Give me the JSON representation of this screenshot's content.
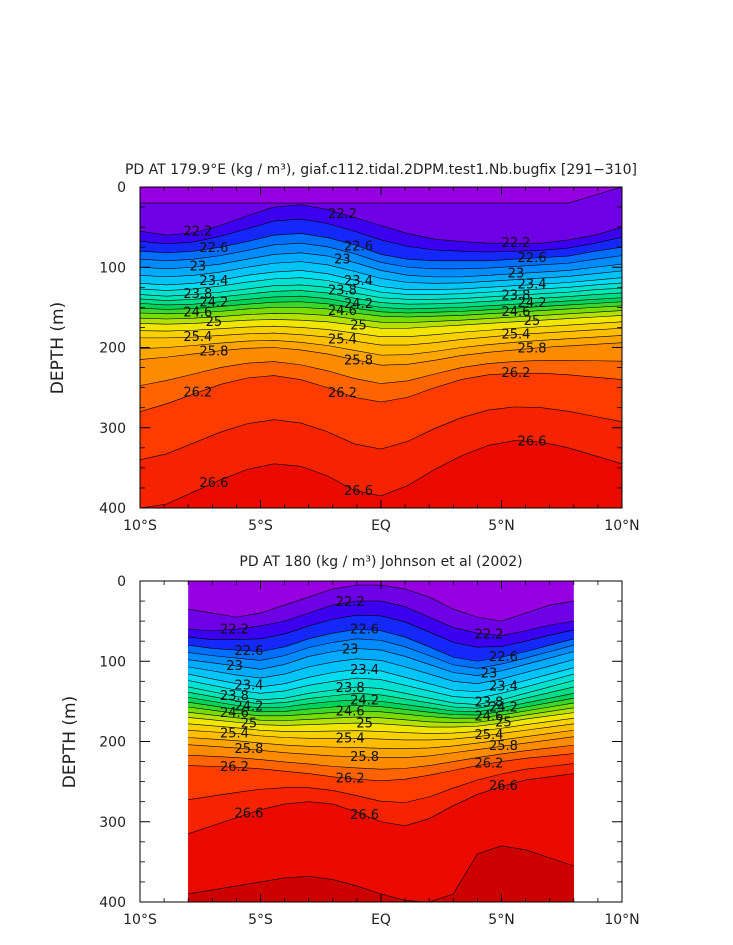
{
  "chart_data": [
    {
      "type": "contour",
      "title": "PD AT 179.9°E (kg / m³), giaf.c112.tidal.2DPM.test1.Nb.bugfix [291−310]",
      "xlabel": "",
      "ylabel": "DEPTH (m)",
      "xlim": [
        -10,
        10
      ],
      "ylim": [
        400,
        0
      ],
      "x_ticks": [
        -10,
        -5,
        0,
        5,
        10
      ],
      "x_tick_labels": [
        "10°S",
        "5°S",
        "EQ",
        "5°N",
        "10°N"
      ],
      "y_ticks": [
        0,
        100,
        200,
        300,
        400
      ],
      "y_tick_labels": [
        "0",
        "100",
        "200",
        "300",
        "400"
      ],
      "data_x_range": [
        -10,
        10
      ],
      "contour_levels": [
        22.0,
        22.2,
        22.4,
        22.6,
        22.8,
        23.0,
        23.2,
        23.4,
        23.6,
        23.8,
        24.0,
        24.2,
        24.4,
        24.6,
        24.8,
        25.0,
        25.2,
        25.4,
        25.6,
        25.8,
        26.0,
        26.2,
        26.4,
        26.6,
        26.8
      ],
      "contour_depth_profile": [
        {
          "level": 22.0,
          "depths": [
            20,
            20,
            20,
            20,
            20,
            20,
            20,
            20,
            20,
            20,
            20,
            20,
            20,
            20,
            20,
            20,
            20,
            10,
            0
          ]
        },
        {
          "level": 22.2,
          "depths": [
            55,
            60,
            57,
            48,
            36,
            25,
            22,
            28,
            38,
            48,
            58,
            65,
            68,
            70,
            70,
            70,
            66,
            60,
            50
          ]
        },
        {
          "level": 22.6,
          "depths": [
            80,
            82,
            80,
            75,
            68,
            60,
            58,
            63,
            72,
            84,
            90,
            92,
            92,
            92,
            90,
            88,
            86,
            80,
            75
          ]
        },
        {
          "level": 23.0,
          "depths": [
            100,
            102,
            100,
            96,
            90,
            84,
            82,
            86,
            94,
            104,
            110,
            112,
            112,
            110,
            108,
            106,
            104,
            100,
            96
          ]
        },
        {
          "level": 23.4,
          "depths": [
            120,
            122,
            120,
            116,
            110,
            106,
            104,
            108,
            116,
            124,
            128,
            128,
            127,
            125,
            123,
            121,
            119,
            116,
            113
          ]
        },
        {
          "level": 23.8,
          "depths": [
            134,
            136,
            134,
            131,
            127,
            123,
            122,
            125,
            132,
            138,
            140,
            140,
            139,
            137,
            135,
            133,
            131,
            128,
            126
          ]
        },
        {
          "level": 24.2,
          "depths": [
            145,
            147,
            146,
            143,
            140,
            137,
            136,
            139,
            145,
            150,
            152,
            151,
            150,
            148,
            146,
            144,
            142,
            140,
            138
          ]
        },
        {
          "level": 24.6,
          "depths": [
            157,
            158,
            157,
            155,
            152,
            150,
            150,
            152,
            157,
            161,
            162,
            161,
            160,
            158,
            156,
            154,
            152,
            150,
            148
          ]
        },
        {
          "level": 25.0,
          "depths": [
            170,
            171,
            170,
            168,
            166,
            165,
            166,
            168,
            172,
            176,
            176,
            174,
            172,
            170,
            168,
            166,
            164,
            162,
            160
          ]
        },
        {
          "level": 25.4,
          "depths": [
            188,
            188,
            187,
            185,
            183,
            182,
            184,
            187,
            192,
            197,
            197,
            194,
            190,
            187,
            184,
            182,
            180,
            178,
            176
          ]
        },
        {
          "level": 25.8,
          "depths": [
            215,
            212,
            208,
            204,
            201,
            200,
            203,
            208,
            215,
            222,
            221,
            216,
            210,
            206,
            203,
            200,
            198,
            196,
            194
          ]
        },
        {
          "level": 26.2,
          "depths": [
            280,
            270,
            258,
            246,
            238,
            235,
            240,
            250,
            262,
            268,
            262,
            250,
            240,
            234,
            232,
            232,
            234,
            237,
            240
          ]
        },
        {
          "level": 26.6,
          "depths": [
            400,
            395,
            380,
            365,
            352,
            345,
            348,
            360,
            378,
            385,
            372,
            352,
            335,
            322,
            316,
            318,
            325,
            335,
            345
          ]
        }
      ],
      "labeled_contours": [
        "22.2",
        "22.6",
        "23",
        "23.4",
        "23.8",
        "24.2",
        "24.6",
        "25",
        "25.4",
        "25.8",
        "26.2",
        "26.6"
      ]
    },
    {
      "type": "contour",
      "title": "PD AT 180 (kg / m³) Johnson et al (2002)",
      "xlabel": "",
      "ylabel": "DEPTH (m)",
      "xlim": [
        -10,
        10
      ],
      "ylim": [
        400,
        0
      ],
      "x_ticks": [
        -10,
        -5,
        0,
        5,
        10
      ],
      "x_tick_labels": [
        "10°S",
        "5°S",
        "EQ",
        "5°N",
        "10°N"
      ],
      "y_ticks": [
        0,
        100,
        200,
        300,
        400
      ],
      "y_tick_labels": [
        "0",
        "100",
        "200",
        "300",
        "400"
      ],
      "data_x_range": [
        -8,
        8
      ],
      "contour_levels": [
        21.6,
        21.8,
        22.0,
        22.2,
        22.4,
        22.6,
        22.8,
        23.0,
        23.2,
        23.4,
        23.6,
        23.8,
        24.0,
        24.2,
        24.4,
        24.6,
        24.8,
        25.0,
        25.2,
        25.4,
        25.6,
        25.8,
        26.0,
        26.2,
        26.4,
        26.6,
        26.8
      ],
      "contour_depth_profile": [
        {
          "level": 22.0,
          "depths": [
            35,
            40,
            45,
            40,
            30,
            20,
            10,
            5,
            5,
            10,
            20,
            35,
            45,
            50,
            40,
            30,
            25
          ]
        },
        {
          "level": 22.2,
          "depths": [
            60,
            62,
            60,
            56,
            50,
            40,
            30,
            25,
            25,
            32,
            45,
            58,
            65,
            68,
            62,
            55,
            50
          ]
        },
        {
          "level": 22.6,
          "depths": [
            80,
            84,
            86,
            88,
            82,
            72,
            65,
            60,
            62,
            70,
            82,
            95,
            100,
            95,
            88,
            80,
            72
          ]
        },
        {
          "level": 23.0,
          "depths": [
            98,
            102,
            106,
            110,
            104,
            94,
            88,
            84,
            86,
            94,
            104,
            114,
            118,
            112,
            104,
            96,
            88
          ]
        },
        {
          "level": 23.4,
          "depths": [
            116,
            122,
            128,
            132,
            128,
            120,
            114,
            110,
            112,
            120,
            128,
            136,
            138,
            132,
            124,
            116,
            108
          ]
        },
        {
          "level": 23.8,
          "depths": [
            132,
            138,
            144,
            148,
            146,
            140,
            136,
            132,
            134,
            140,
            146,
            152,
            154,
            148,
            140,
            132,
            124
          ]
        },
        {
          "level": 24.2,
          "depths": [
            145,
            150,
            155,
            158,
            157,
            153,
            150,
            148,
            150,
            154,
            158,
            162,
            163,
            158,
            152,
            146,
            140
          ]
        },
        {
          "level": 24.6,
          "depths": [
            157,
            161,
            165,
            168,
            168,
            166,
            164,
            162,
            163,
            166,
            169,
            171,
            171,
            167,
            162,
            157,
            152
          ]
        },
        {
          "level": 25.0,
          "depths": [
            170,
            173,
            176,
            179,
            180,
            179,
            178,
            177,
            178,
            180,
            182,
            182,
            181,
            177,
            172,
            168,
            164
          ]
        },
        {
          "level": 25.4,
          "depths": [
            186,
            188,
            190,
            193,
            195,
            196,
            196,
            196,
            197,
            198,
            198,
            197,
            194,
            190,
            186,
            182,
            178
          ]
        },
        {
          "level": 25.8,
          "depths": [
            204,
            206,
            208,
            211,
            214,
            216,
            218,
            219,
            220,
            220,
            218,
            214,
            210,
            206,
            202,
            198,
            194
          ]
        },
        {
          "level": 26.2,
          "depths": [
            230,
            231,
            232,
            234,
            237,
            240,
            244,
            247,
            249,
            247,
            242,
            236,
            230,
            225,
            221,
            218,
            215
          ]
        },
        {
          "level": 26.6,
          "depths": [
            315,
            305,
            295,
            285,
            278,
            275,
            278,
            288,
            300,
            305,
            296,
            280,
            266,
            256,
            248,
            244,
            240
          ]
        },
        {
          "level": 26.8,
          "depths": [
            390,
            385,
            380,
            375,
            370,
            368,
            372,
            380,
            390,
            398,
            400,
            390,
            340,
            330,
            335,
            345,
            355
          ]
        }
      ],
      "labeled_contours": [
        "22.2",
        "22.6",
        "23",
        "23.4",
        "23.8",
        "24.2",
        "24.6",
        "25",
        "25.4",
        "25.8",
        "26.2",
        "26.6"
      ]
    }
  ]
}
